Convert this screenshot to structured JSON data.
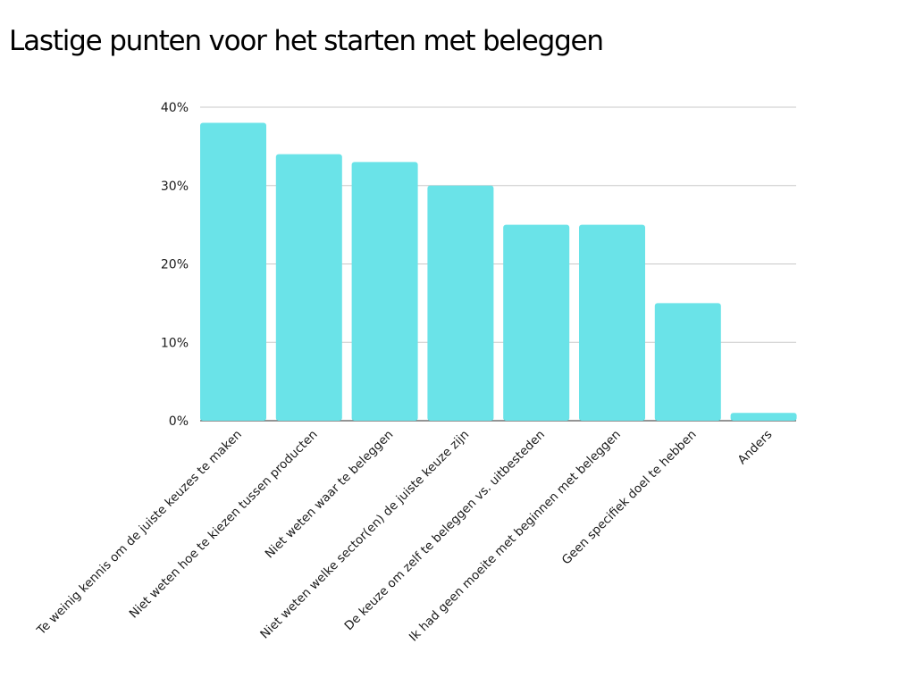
{
  "title": "Lastige punten voor het starten met beleggen",
  "colors": {
    "bar": "#6ae3e8",
    "grid": "#c8c8c8",
    "axis": "#555555",
    "text": "#1a1a1a"
  },
  "chart_data": {
    "type": "bar",
    "title": "Lastige punten voor het starten met beleggen",
    "xlabel": "",
    "ylabel": "",
    "categories": [
      "Te weinig kennis om de juiste keuzes te maken",
      "Niet weten hoe te kiezen tussen producten",
      "Niet weten waar te beleggen",
      "Niet weten welke sector(en) de juiste keuze zijn",
      "De keuze om zelf te beleggen vs. uitbesteden",
      "Ik had geen moeite met beginnen met beleggen",
      "Geen specifiek doel te hebben",
      "Anders"
    ],
    "values": [
      38,
      34,
      33,
      30,
      25,
      25,
      15,
      1
    ],
    "unit": "%",
    "ylim": [
      0,
      40
    ],
    "yticks": [
      "0%",
      "10%",
      "20%",
      "30%",
      "40%"
    ],
    "grid": true,
    "legend": "none"
  }
}
